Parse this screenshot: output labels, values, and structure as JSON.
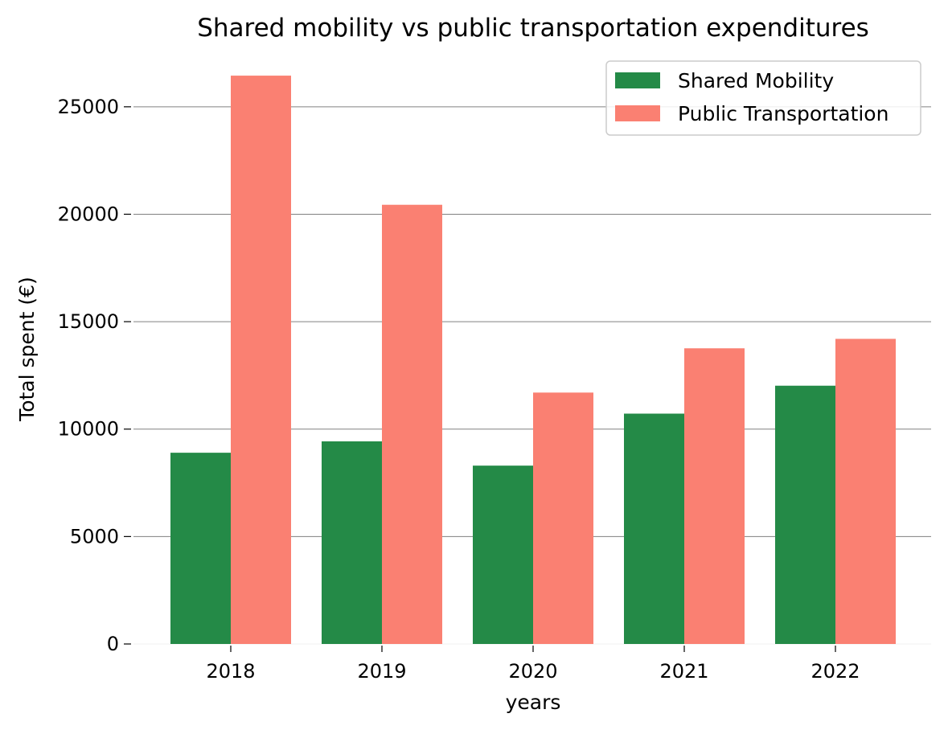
{
  "chart_data": {
    "type": "bar",
    "title": "Shared mobility vs public transportation expenditures",
    "xlabel": "years",
    "ylabel": "Total spent (€)",
    "categories": [
      "2018",
      "2019",
      "2020",
      "2021",
      "2022"
    ],
    "series": [
      {
        "name": "Shared Mobility",
        "color": "#248a47",
        "values": [
          8900,
          9430,
          8300,
          10720,
          12020
        ]
      },
      {
        "name": "Public Transportation",
        "color": "#fa8072",
        "values": [
          26450,
          20440,
          11700,
          13760,
          14200
        ]
      }
    ],
    "yticks": [
      0,
      5000,
      10000,
      15000,
      20000,
      25000
    ],
    "ylim": [
      0,
      27800
    ],
    "grid": true,
    "legend_position": "top-right"
  }
}
